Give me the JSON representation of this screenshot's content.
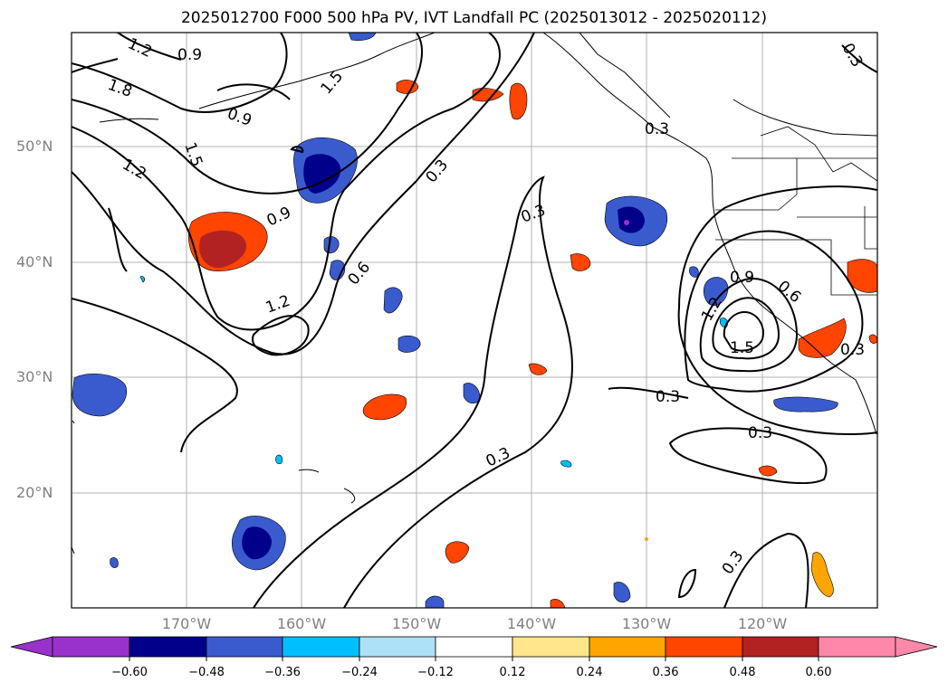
{
  "title": "2025012700 F000 500 hPa PV, IVT Landfall PC (2025013012 - 2025020112)",
  "latitude_labels": [
    "50°N",
    "40°N",
    "30°N",
    "20°N"
  ],
  "longitude_labels": [
    "170°W",
    "160°W",
    "150°W",
    "140°W",
    "130°W",
    "120°W"
  ],
  "contour_labels": [
    "1.2",
    "0.9",
    "1.8",
    "0.9",
    "1.5",
    "1.5",
    "1.2",
    "0.9",
    "0.6",
    "1.2",
    "0.3",
    "0.3",
    "0.3",
    "0.3",
    "0.3",
    "0.3",
    "0.9",
    "0.6",
    "1.2",
    "1.5",
    "0.3",
    "0.3",
    "0.3"
  ],
  "colorbar": {
    "tick_labels": [
      "−0.60",
      "−0.48",
      "−0.36",
      "−0.24",
      "−0.12",
      "0.12",
      "0.24",
      "0.36",
      "0.48",
      "0.60"
    ],
    "colors": [
      "#9932CC",
      "#00008B",
      "#3A5BCD",
      "#00BFFF",
      "#ADE1F8",
      "#FFFFFF",
      "#FFE68A",
      "#FFA500",
      "#FF4500",
      "#B22222",
      "#FF88AA"
    ]
  },
  "colors": {
    "negative_core": "#00008B",
    "negative_mid": "#3A5BCD",
    "negative_edge": "#00BFFF",
    "positive_low": "#FFA500",
    "positive_mid": "#FF4500",
    "positive_high": "#B22222",
    "gridline": "#b0b0b0",
    "coastline": "#000000"
  }
}
